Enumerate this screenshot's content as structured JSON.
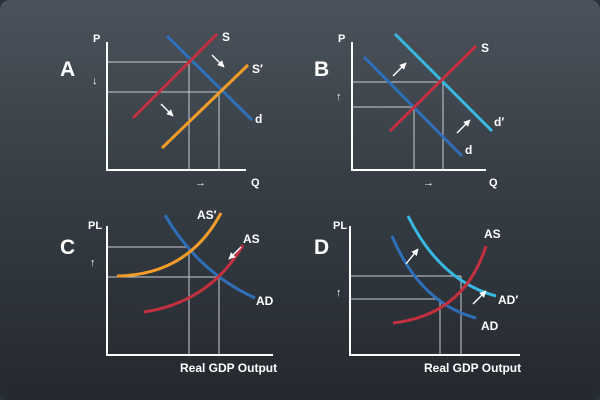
{
  "colors": {
    "demand": "#2f6fb8",
    "supply": "#c3303f",
    "supply_shift": "#f39c28",
    "demand_shift": "#39b8e3",
    "axis": "#ffffff",
    "guide": "#c8cdd2"
  },
  "panels": [
    {
      "id": "A",
      "letter": "A",
      "y_axis": "P",
      "x_axis": "Q",
      "curves": {
        "demand": "d",
        "supply": "S",
        "shift": "S′"
      },
      "price_arrow": "↓",
      "quantity_arrow": "→"
    },
    {
      "id": "B",
      "letter": "B",
      "y_axis": "P",
      "x_axis": "Q",
      "curves": {
        "demand": "d",
        "supply": "S",
        "shift": "d′"
      },
      "price_arrow": "↑",
      "quantity_arrow": "→"
    },
    {
      "id": "C",
      "letter": "C",
      "y_axis": "PL",
      "x_axis": "Real GDP Output",
      "curves": {
        "demand": "AD",
        "supply": "AS",
        "shift": "AS′"
      },
      "price_arrow": "↑"
    },
    {
      "id": "D",
      "letter": "D",
      "y_axis": "PL",
      "x_axis": "Real GDP Output",
      "curves": {
        "demand": "AD",
        "supply": "AS",
        "shift": "AD′"
      },
      "price_arrow": "↑"
    }
  ]
}
